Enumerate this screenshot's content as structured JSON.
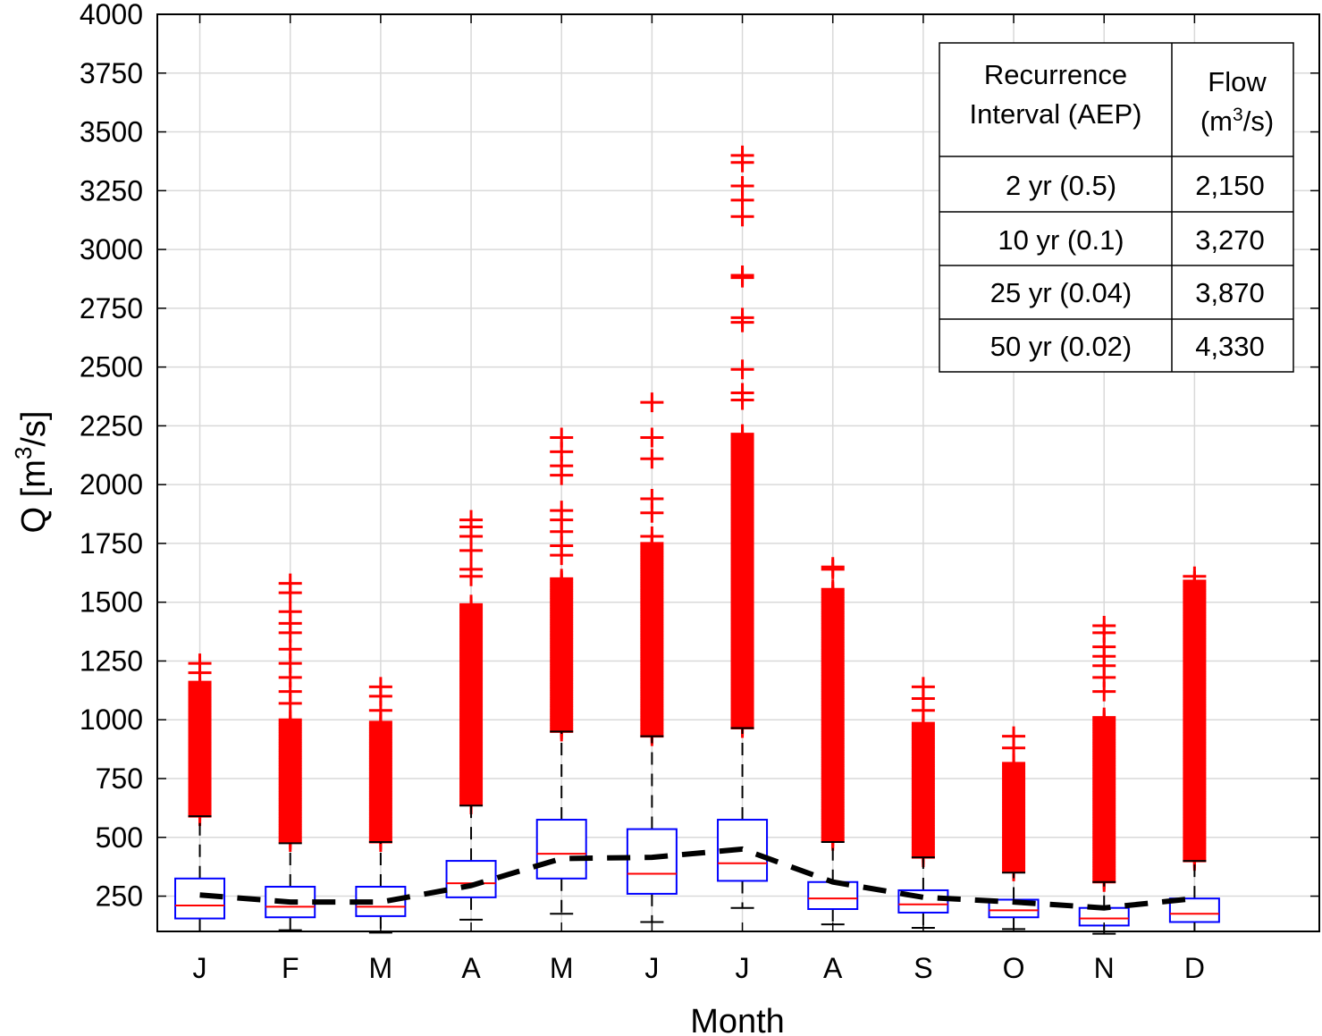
{
  "chart_data": {
    "type": "box",
    "xlabel": "Month",
    "ylabel": "Q [m³/s]",
    "ylabel_parts": {
      "pre": "Q [m",
      "sup": "3",
      "post": "/s]"
    },
    "ylim": [
      100,
      4000
    ],
    "yticks": [
      250,
      500,
      750,
      1000,
      1250,
      1500,
      1750,
      2000,
      2250,
      2500,
      2750,
      3000,
      3250,
      3500,
      3750,
      4000
    ],
    "grid": true,
    "categories": [
      "J",
      "F",
      "M",
      "A",
      "M",
      "J",
      "J",
      "A",
      "S",
      "O",
      "N",
      "D"
    ],
    "boxes": [
      {
        "whisker_low": 100,
        "q1": 155,
        "median": 210,
        "q3": 325,
        "whisker_high": 590
      },
      {
        "whisker_low": 105,
        "q1": 160,
        "median": 205,
        "q3": 290,
        "whisker_high": 475
      },
      {
        "whisker_low": 95,
        "q1": 165,
        "median": 205,
        "q3": 290,
        "whisker_high": 480
      },
      {
        "whisker_low": 150,
        "q1": 245,
        "median": 305,
        "q3": 400,
        "whisker_high": 635
      },
      {
        "whisker_low": 175,
        "q1": 325,
        "median": 430,
        "q3": 575,
        "whisker_high": 950
      },
      {
        "whisker_low": 140,
        "q1": 260,
        "median": 345,
        "q3": 535,
        "whisker_high": 930
      },
      {
        "whisker_low": 200,
        "q1": 315,
        "median": 390,
        "q3": 575,
        "whisker_high": 965
      },
      {
        "whisker_low": 130,
        "q1": 195,
        "median": 240,
        "q3": 310,
        "whisker_high": 480
      },
      {
        "whisker_low": 115,
        "q1": 180,
        "median": 215,
        "q3": 275,
        "whisker_high": 415
      },
      {
        "whisker_low": 110,
        "q1": 160,
        "median": 190,
        "q3": 235,
        "whisker_high": 350
      },
      {
        "whisker_low": 90,
        "q1": 125,
        "median": 155,
        "q3": 200,
        "whisker_high": 310
      },
      {
        "whisker_low": 100,
        "q1": 140,
        "median": 175,
        "q3": 240,
        "whisker_high": 400
      }
    ],
    "mean_line": [
      255,
      225,
      225,
      295,
      410,
      415,
      450,
      310,
      245,
      225,
      200,
      240
    ],
    "outliers": [
      {
        "range": [
          590,
          1160
        ],
        "extra": [
          1200,
          1240
        ]
      },
      {
        "range": [
          480,
          1000
        ],
        "extra": [
          1070,
          1120,
          1180,
          1240,
          1300,
          1370,
          1410,
          1460,
          1540,
          1580
        ]
      },
      {
        "range": [
          480,
          990
        ],
        "extra": [
          1040,
          1100,
          1140
        ]
      },
      {
        "range": [
          640,
          1490
        ],
        "extra": [
          1610,
          1640,
          1720,
          1780,
          1820,
          1850
        ]
      },
      {
        "range": [
          950,
          1600
        ],
        "extra": [
          1700,
          1740,
          1800,
          1850,
          1890,
          2040,
          2080,
          2140,
          2200
        ]
      },
      {
        "range": [
          930,
          1750
        ],
        "extra": [
          1780,
          1880,
          1940,
          2110,
          2200,
          2350
        ]
      },
      {
        "range": [
          965,
          2220
        ],
        "extra": [
          2360,
          2390,
          2490,
          2690,
          2710,
          2880,
          2890,
          3140,
          3210,
          3270,
          3370,
          3400
        ]
      },
      {
        "range": [
          485,
          1560
        ],
        "extra": [
          1640,
          1650
        ]
      },
      {
        "range": [
          415,
          985
        ],
        "extra": [
          1040,
          1090,
          1140
        ]
      },
      {
        "range": [
          355,
          820
        ],
        "extra": [
          880,
          930
        ]
      },
      {
        "range": [
          310,
          1010
        ],
        "extra": [
          1120,
          1180,
          1230,
          1270,
          1310,
          1370,
          1400
        ]
      },
      {
        "range": [
          400,
          1590
        ],
        "extra": [
          1610
        ]
      }
    ],
    "colors": {
      "box": "#0000ff",
      "median": "#ff0000",
      "outlier": "#ff0000",
      "whisker": "#000000",
      "mean_line": "#000000",
      "grid": "#d9d9d9"
    }
  },
  "table": {
    "header_col1_line1": "Recurrence",
    "header_col1_line2": "Interval (AEP)",
    "header_col2_line1": "Flow",
    "header_col2_line2_pre": "(m",
    "header_col2_line2_sup": "3",
    "header_col2_line2_post": "/s)",
    "rows": [
      {
        "interval": "2 yr (0.5)",
        "flow": "2,150"
      },
      {
        "interval": "10 yr (0.1)",
        "flow": "3,270"
      },
      {
        "interval": "25 yr (0.04)",
        "flow": "3,870"
      },
      {
        "interval": "50 yr (0.02)",
        "flow": "4,330"
      }
    ]
  }
}
